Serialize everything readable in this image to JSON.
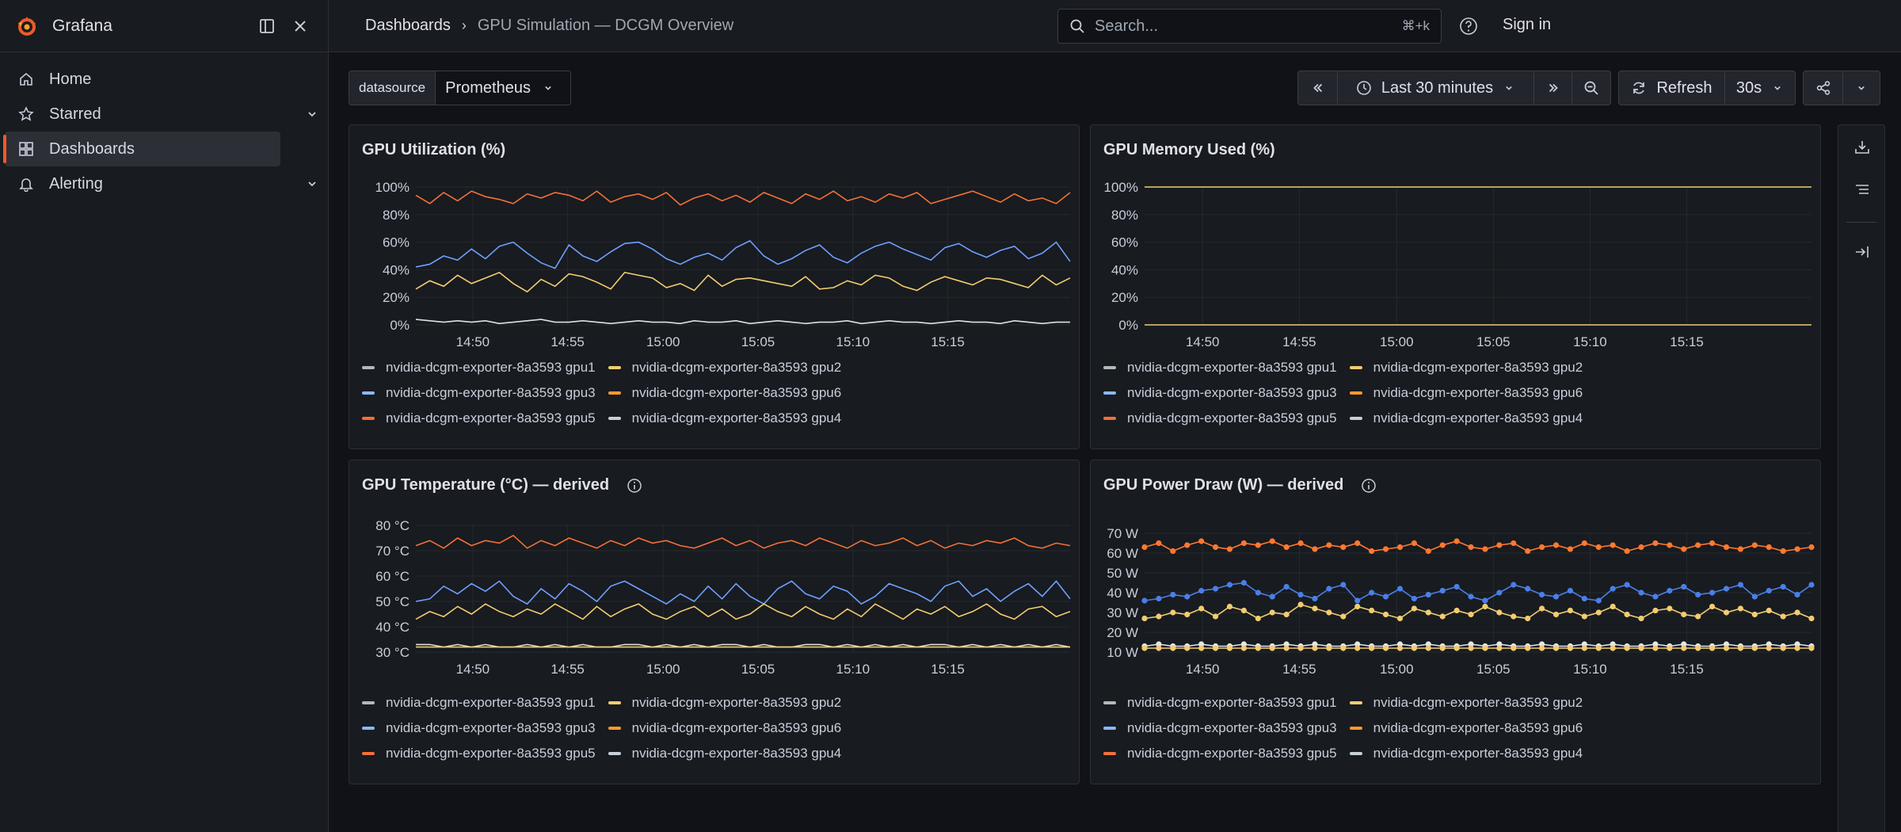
{
  "app": {
    "name": "Grafana"
  },
  "sidebar": {
    "items": [
      {
        "label": "Home",
        "icon": "home-icon"
      },
      {
        "label": "Starred",
        "icon": "star-icon",
        "expandable": true
      },
      {
        "label": "Dashboards",
        "icon": "apps-icon",
        "active": true
      },
      {
        "label": "Alerting",
        "icon": "bell-icon",
        "expandable": true
      }
    ]
  },
  "topbar": {
    "breadcrumb": [
      "Dashboards",
      "GPU Simulation — DCGM Overview"
    ],
    "search_placeholder": "Search...",
    "search_shortcut": "⌘+k",
    "signin_label": "Sign in"
  },
  "controls": {
    "datasource_label": "datasource",
    "datasource_value": "Prometheus",
    "time_range": "Last 30 minutes",
    "refresh_label": "Refresh",
    "refresh_interval": "30s"
  },
  "legend_series": [
    {
      "name": "nvidia-dcgm-exporter-8a3593 gpu1",
      "color": "#b7b7b7"
    },
    {
      "name": "nvidia-dcgm-exporter-8a3593 gpu2",
      "color": "#f2cc71"
    },
    {
      "name": "nvidia-dcgm-exporter-8a3593 gpu3",
      "color": "#8ab8ff"
    },
    {
      "name": "nvidia-dcgm-exporter-8a3593 gpu6",
      "color": "#ff9830"
    },
    {
      "name": "nvidia-dcgm-exporter-8a3593 gpu5",
      "color": "#f2703a"
    },
    {
      "name": "nvidia-dcgm-exporter-8a3593 gpu4",
      "color": "#c7d0d9"
    }
  ],
  "chart_data": [
    {
      "type": "line",
      "title": "GPU Utilization (%)",
      "x_ticks": [
        "14:50",
        "14:55",
        "15:00",
        "15:05",
        "15:10",
        "15:15"
      ],
      "y_ticks": [
        "0%",
        "20%",
        "40%",
        "60%",
        "80%",
        "100%"
      ],
      "ylim": [
        0,
        100
      ],
      "grid": true,
      "series": [
        {
          "name": "nvidia-dcgm-exporter-8a3593 gpu6",
          "color": "#f2703a",
          "values": [
            94,
            88,
            96,
            90,
            97,
            93,
            91,
            88,
            95,
            92,
            96,
            94,
            90,
            97,
            89,
            93,
            95,
            91,
            96,
            87,
            92,
            95,
            90,
            94,
            89,
            96,
            92,
            88,
            95,
            91,
            97,
            90,
            93,
            89,
            95,
            92,
            96,
            88,
            91,
            94,
            97,
            93,
            89,
            95,
            90,
            92,
            88,
            96
          ]
        },
        {
          "name": "nvidia-dcgm-exporter-8a3593 gpu3",
          "color": "#6e9fff",
          "values": [
            42,
            44,
            50,
            47,
            55,
            48,
            57,
            60,
            52,
            45,
            41,
            58,
            50,
            46,
            53,
            59,
            60,
            55,
            48,
            44,
            49,
            52,
            47,
            56,
            61,
            50,
            44,
            48,
            54,
            58,
            49,
            45,
            52,
            57,
            60,
            55,
            51,
            47,
            56,
            59,
            53,
            49,
            54,
            57,
            48,
            52,
            60,
            46
          ]
        },
        {
          "name": "nvidia-dcgm-exporter-8a3593 gpu2",
          "color": "#f2cc71",
          "values": [
            26,
            32,
            28,
            36,
            30,
            34,
            38,
            30,
            24,
            33,
            28,
            37,
            35,
            31,
            26,
            38,
            36,
            34,
            27,
            30,
            25,
            36,
            28,
            33,
            34,
            32,
            30,
            28,
            35,
            26,
            27,
            32,
            29,
            36,
            34,
            28,
            25,
            31,
            35,
            32,
            29,
            34,
            33,
            30,
            27,
            36,
            29,
            34
          ]
        },
        {
          "name": "nvidia-dcgm-exporter-8a3593 gpu1",
          "color": "#e0e0e0",
          "values": [
            4,
            3,
            2,
            3,
            2,
            3,
            1,
            2,
            3,
            4,
            2,
            2,
            3,
            2,
            1,
            2,
            3,
            2,
            2,
            1,
            3,
            2,
            2,
            3,
            1,
            2,
            3,
            2,
            1,
            2,
            2,
            3,
            1,
            2,
            3,
            2,
            2,
            1,
            2,
            3,
            2,
            2,
            1,
            3,
            2,
            1,
            2,
            2
          ]
        }
      ]
    },
    {
      "type": "line",
      "title": "GPU Memory Used (%)",
      "x_ticks": [
        "14:50",
        "14:55",
        "15:00",
        "15:05",
        "15:10",
        "15:15"
      ],
      "y_ticks": [
        "0%",
        "20%",
        "40%",
        "60%",
        "80%",
        "100%"
      ],
      "ylim": [
        0,
        100
      ],
      "grid": true,
      "series": [
        {
          "name": "nvidia-dcgm-exporter-8a3593 gpu2",
          "color": "#f2cc71",
          "values": [
            100,
            100
          ]
        },
        {
          "name": "nvidia-dcgm-exporter-8a3593 gpu1",
          "color": "#f2cc71",
          "values": [
            0,
            0
          ]
        }
      ]
    },
    {
      "type": "line",
      "title": "GPU Temperature (°C) — derived",
      "x_ticks": [
        "14:50",
        "14:55",
        "15:00",
        "15:05",
        "15:10",
        "15:15"
      ],
      "y_ticks": [
        "30 °C",
        "40 °C",
        "50 °C",
        "60 °C",
        "70 °C",
        "80 °C"
      ],
      "ylim": [
        30,
        80
      ],
      "grid": true,
      "series": [
        {
          "name": "nvidia-dcgm-exporter-8a3593 gpu6",
          "color": "#f2703a",
          "values": [
            72,
            74,
            71,
            75,
            72,
            74,
            73,
            76,
            71,
            74,
            72,
            75,
            73,
            71,
            74,
            72,
            75,
            73,
            74,
            72,
            71,
            73,
            75,
            72,
            74,
            71,
            73,
            74,
            72,
            75,
            73,
            71,
            74,
            72,
            73,
            75,
            72,
            74,
            71,
            73,
            72,
            74,
            73,
            75,
            72,
            71,
            73,
            72
          ]
        },
        {
          "name": "nvidia-dcgm-exporter-8a3593 gpu3",
          "color": "#6e9fff",
          "values": [
            50,
            51,
            56,
            53,
            57,
            54,
            58,
            52,
            49,
            55,
            51,
            57,
            54,
            50,
            56,
            58,
            55,
            52,
            49,
            53,
            50,
            56,
            51,
            57,
            52,
            49,
            55,
            58,
            53,
            51,
            56,
            54,
            49,
            52,
            57,
            55,
            53,
            50,
            56,
            58,
            52,
            55,
            50,
            54,
            57,
            52,
            58,
            51
          ]
        },
        {
          "name": "nvidia-dcgm-exporter-8a3593 gpu2",
          "color": "#f2cc71",
          "values": [
            43,
            46,
            44,
            48,
            45,
            49,
            46,
            44,
            47,
            45,
            49,
            46,
            43,
            48,
            44,
            47,
            49,
            45,
            43,
            46,
            48,
            44,
            47,
            43,
            45,
            49,
            46,
            44,
            48,
            45,
            43,
            47,
            44,
            49,
            46,
            43,
            47,
            45,
            48,
            44,
            46,
            49,
            45,
            43,
            47,
            48,
            44,
            46
          ]
        },
        {
          "name": "nvidia-dcgm-exporter-8a3593 gpu1",
          "color": "#e0e0e0",
          "values": [
            33,
            33,
            32,
            33,
            32,
            33,
            32,
            32,
            33,
            32,
            33,
            32,
            33,
            32,
            32,
            33,
            33,
            32,
            33,
            32,
            33,
            32,
            33,
            33,
            32,
            33,
            32,
            32,
            33,
            33,
            32,
            33,
            32,
            33,
            32,
            33,
            32,
            33,
            33,
            32,
            33,
            32,
            33,
            32,
            33,
            32,
            33,
            32
          ]
        },
        {
          "name": "nvidia-dcgm-exporter-8a3593 gpu4",
          "color": "#f2cc71",
          "values": [
            32,
            32,
            32,
            32,
            32,
            32,
            32,
            32,
            32,
            32,
            32,
            32,
            32,
            32,
            32,
            32,
            32,
            32,
            32,
            32,
            32,
            32,
            32,
            32,
            32,
            32,
            32,
            32,
            32,
            32,
            32,
            32,
            32,
            32,
            32,
            32,
            32,
            32,
            32,
            32,
            32,
            32,
            32,
            32,
            32,
            32,
            32,
            32
          ]
        }
      ]
    },
    {
      "type": "line",
      "title": "GPU Power Draw (W) — derived",
      "x_ticks": [
        "14:50",
        "14:55",
        "15:00",
        "15:05",
        "15:10",
        "15:15"
      ],
      "y_ticks": [
        "10 W",
        "20 W",
        "30 W",
        "40 W",
        "50 W",
        "60 W",
        "70 W"
      ],
      "ylim": [
        10,
        70
      ],
      "grid": true,
      "points": true,
      "series": [
        {
          "name": "nvidia-dcgm-exporter-8a3593 gpu6",
          "color": "#ff7830",
          "values": [
            63,
            65,
            61,
            64,
            66,
            63,
            62,
            65,
            64,
            66,
            63,
            65,
            62,
            64,
            63,
            65,
            61,
            62,
            63,
            65,
            61,
            64,
            66,
            63,
            62,
            64,
            65,
            61,
            63,
            64,
            62,
            65,
            63,
            64,
            61,
            63,
            65,
            64,
            62,
            64,
            65,
            63,
            62,
            64,
            63,
            61,
            62,
            63
          ]
        },
        {
          "name": "nvidia-dcgm-exporter-8a3593 gpu3",
          "color": "#4a7fe8",
          "values": [
            36,
            37,
            39,
            38,
            41,
            42,
            44,
            45,
            40,
            38,
            43,
            39,
            37,
            42,
            44,
            36,
            40,
            38,
            42,
            37,
            39,
            41,
            43,
            38,
            36,
            40,
            44,
            42,
            39,
            38,
            41,
            37,
            36,
            42,
            44,
            40,
            38,
            41,
            43,
            39,
            40,
            42,
            44,
            38,
            41,
            43,
            39,
            44
          ]
        },
        {
          "name": "nvidia-dcgm-exporter-8a3593 gpu2",
          "color": "#f2cc71",
          "values": [
            27,
            28,
            30,
            29,
            32,
            28,
            33,
            31,
            27,
            30,
            29,
            34,
            32,
            30,
            28,
            33,
            31,
            29,
            27,
            32,
            30,
            28,
            31,
            29,
            33,
            30,
            28,
            27,
            32,
            29,
            31,
            28,
            30,
            33,
            29,
            27,
            31,
            32,
            29,
            28,
            33,
            30,
            32,
            29,
            31,
            28,
            30,
            27
          ]
        },
        {
          "name": "nvidia-dcgm-exporter-8a3593 gpu1",
          "color": "#e6e6e6",
          "values": [
            13,
            14,
            13,
            13,
            14,
            13,
            13,
            14,
            13,
            13,
            14,
            13,
            14,
            13,
            13,
            14,
            13,
            13,
            14,
            13,
            14,
            13,
            13,
            14,
            13,
            14,
            13,
            13,
            14,
            13,
            13,
            14,
            13,
            14,
            13,
            13,
            14,
            13,
            14,
            13,
            13,
            14,
            13,
            13,
            14,
            13,
            14,
            13
          ]
        },
        {
          "name": "nvidia-dcgm-exporter-8a3593 gpu4",
          "color": "#f2cc71",
          "values": [
            12,
            12,
            12,
            12,
            12,
            12,
            12,
            12,
            12,
            12,
            12,
            12,
            12,
            12,
            12,
            12,
            12,
            12,
            12,
            12,
            12,
            12,
            12,
            12,
            12,
            12,
            12,
            12,
            12,
            12,
            12,
            12,
            12,
            12,
            12,
            12,
            12,
            12,
            12,
            12,
            12,
            12,
            12,
            12,
            12,
            12,
            12,
            12
          ]
        }
      ]
    }
  ]
}
